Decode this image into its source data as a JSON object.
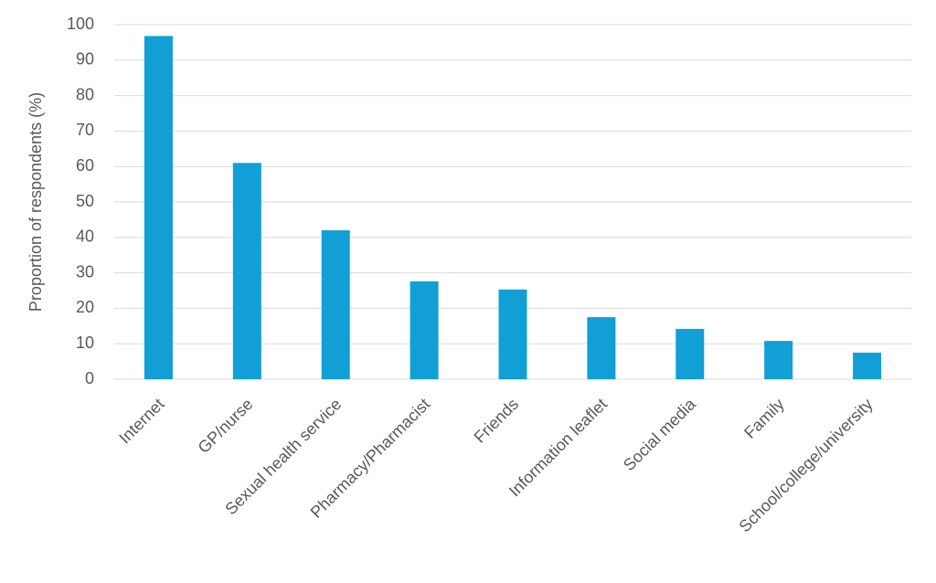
{
  "chart_data": {
    "type": "bar",
    "y_label": "Proportion of respondents (%)",
    "categories": [
      "Internet",
      "GP/nurse",
      "Sexual health service",
      "Pharmacy/Pharmacist",
      "Friends",
      "Information leaflet",
      "Social media",
      "Family",
      "School/college/university"
    ],
    "values": [
      96.8,
      61,
      42,
      27.6,
      25.3,
      17.5,
      14.2,
      10.8,
      7.5
    ],
    "color": "#119fd6",
    "ylim": [
      0,
      100
    ],
    "yticks": [
      0,
      10,
      20,
      30,
      40,
      50,
      60,
      70,
      80,
      90,
      100
    ],
    "grid": true
  }
}
